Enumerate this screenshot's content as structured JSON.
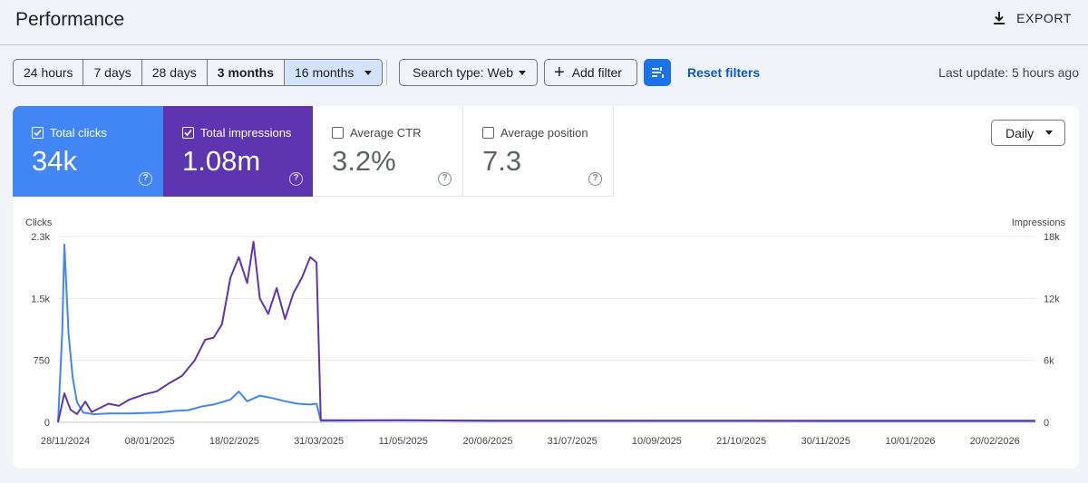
{
  "page": {
    "title": "Performance",
    "export_label": "EXPORT"
  },
  "filters": {
    "ranges": [
      "24 hours",
      "7 days",
      "28 days",
      "3 months",
      "16 months"
    ],
    "search_type": "Search type: Web",
    "add_filter": "Add filter",
    "reset": "Reset filters",
    "last_update": "Last update: 5 hours ago"
  },
  "metrics": {
    "clicks": {
      "label": "Total clicks",
      "value": "34k",
      "checked": true
    },
    "impressions": {
      "label": "Total impressions",
      "value": "1.08m",
      "checked": true
    },
    "ctr": {
      "label": "Average CTR",
      "value": "3.2%",
      "checked": false
    },
    "position": {
      "label": "Average position",
      "value": "7.3",
      "checked": false
    }
  },
  "granularity": "Daily",
  "colors": {
    "clicks": "#4285f4",
    "impressions": "#5e35b1",
    "accent": "#1a73e8"
  },
  "chart_data": {
    "type": "line",
    "ylabel_left": "Clicks",
    "ylabel_right": "Impressions",
    "y_left_ticks": [
      "0",
      "750",
      "1.5k",
      "2.3k"
    ],
    "y_right_ticks": [
      "0",
      "6k",
      "12k",
      "18k"
    ],
    "y_left_range": [
      0,
      2300
    ],
    "y_right_range": [
      0,
      18000
    ],
    "x_ticks": [
      "28/11/2024",
      "08/01/2025",
      "18/02/2025",
      "31/03/2025",
      "11/05/2025",
      "20/06/2025",
      "31/07/2025",
      "10/09/2025",
      "21/10/2025",
      "30/11/2025",
      "10/01/2026",
      "20/02/2026"
    ],
    "grid": true,
    "series": [
      {
        "name": "Clicks",
        "axis": "left",
        "points": [
          [
            "2024-11-28",
            0
          ],
          [
            "2024-11-30",
            1100
          ],
          [
            "2024-12-01",
            2200
          ],
          [
            "2024-12-03",
            1100
          ],
          [
            "2024-12-05",
            550
          ],
          [
            "2024-12-07",
            250
          ],
          [
            "2024-12-10",
            120
          ],
          [
            "2024-12-15",
            100
          ],
          [
            "2024-12-22",
            110
          ],
          [
            "2025-01-01",
            110
          ],
          [
            "2025-01-08",
            115
          ],
          [
            "2025-01-15",
            120
          ],
          [
            "2025-01-22",
            140
          ],
          [
            "2025-01-29",
            150
          ],
          [
            "2025-02-05",
            200
          ],
          [
            "2025-02-10",
            220
          ],
          [
            "2025-02-18",
            280
          ],
          [
            "2025-02-22",
            380
          ],
          [
            "2025-02-26",
            260
          ],
          [
            "2025-03-04",
            330
          ],
          [
            "2025-03-10",
            300
          ],
          [
            "2025-03-16",
            260
          ],
          [
            "2025-03-22",
            230
          ],
          [
            "2025-03-28",
            220
          ],
          [
            "2025-03-31",
            230
          ],
          [
            "2025-04-02",
            20
          ],
          [
            "2025-05-11",
            25
          ],
          [
            "2025-06-20",
            20
          ],
          [
            "2025-07-31",
            20
          ],
          [
            "2025-09-10",
            18
          ],
          [
            "2025-10-21",
            18
          ],
          [
            "2025-11-30",
            15
          ],
          [
            "2026-01-10",
            15
          ],
          [
            "2026-02-20",
            15
          ],
          [
            "2026-03-08",
            15
          ]
        ]
      },
      {
        "name": "Impressions",
        "axis": "right",
        "points": [
          [
            "2024-11-28",
            0
          ],
          [
            "2024-12-01",
            2800
          ],
          [
            "2024-12-04",
            1200
          ],
          [
            "2024-12-07",
            800
          ],
          [
            "2024-12-11",
            2000
          ],
          [
            "2024-12-14",
            1000
          ],
          [
            "2024-12-18",
            1400
          ],
          [
            "2024-12-22",
            1800
          ],
          [
            "2024-12-27",
            1600
          ],
          [
            "2025-01-01",
            2200
          ],
          [
            "2025-01-08",
            2700
          ],
          [
            "2025-01-14",
            3000
          ],
          [
            "2025-01-20",
            3800
          ],
          [
            "2025-01-26",
            4500
          ],
          [
            "2025-02-01",
            6000
          ],
          [
            "2025-02-06",
            8000
          ],
          [
            "2025-02-10",
            8200
          ],
          [
            "2025-02-14",
            9500
          ],
          [
            "2025-02-18",
            14000
          ],
          [
            "2025-02-22",
            16000
          ],
          [
            "2025-02-26",
            13500
          ],
          [
            "2025-03-01",
            17500
          ],
          [
            "2025-03-04",
            12000
          ],
          [
            "2025-03-08",
            10500
          ],
          [
            "2025-03-12",
            13000
          ],
          [
            "2025-03-16",
            10000
          ],
          [
            "2025-03-20",
            12500
          ],
          [
            "2025-03-24",
            14000
          ],
          [
            "2025-03-28",
            16000
          ],
          [
            "2025-03-31",
            15500
          ],
          [
            "2025-04-02",
            200
          ],
          [
            "2025-05-11",
            200
          ],
          [
            "2025-06-20",
            150
          ],
          [
            "2025-07-31",
            150
          ],
          [
            "2025-09-10",
            150
          ],
          [
            "2025-10-21",
            150
          ],
          [
            "2025-11-30",
            150
          ],
          [
            "2026-01-10",
            150
          ],
          [
            "2026-02-20",
            150
          ],
          [
            "2026-03-08",
            150
          ]
        ]
      }
    ]
  }
}
